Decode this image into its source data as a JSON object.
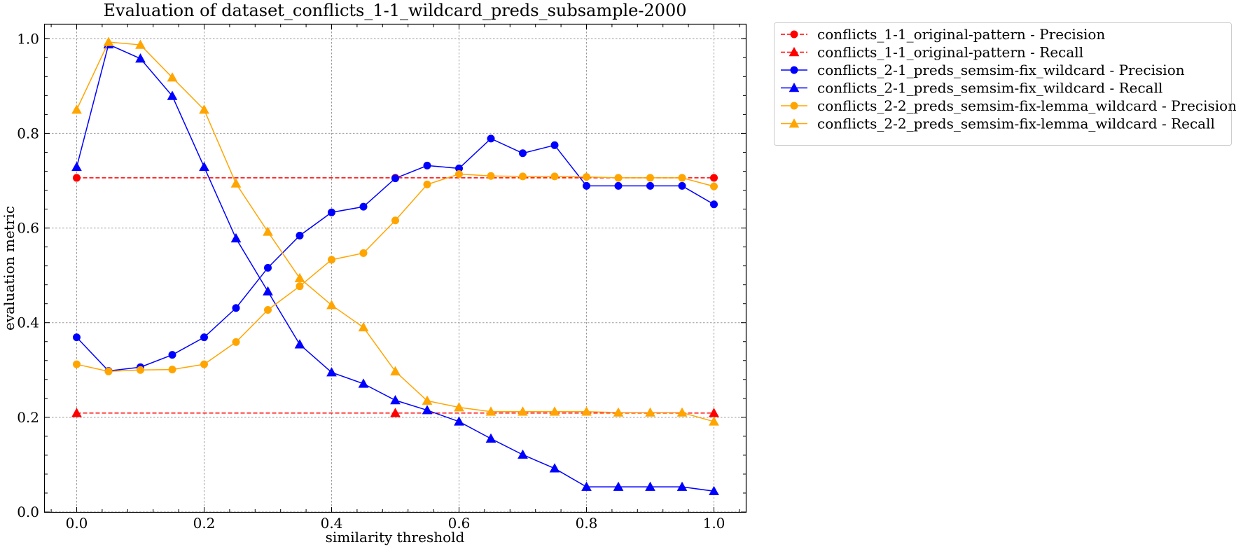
{
  "chart_data": {
    "type": "line",
    "title": "Evaluation of dataset_conflicts_1-1_wildcard_preds_subsample-2000",
    "xlabel": "similarity threshold",
    "ylabel": "evaluation metric",
    "xlim": [
      -0.05,
      1.05
    ],
    "ylim": [
      0.0,
      1.03
    ],
    "xticks": [
      "0.0",
      "0.2",
      "0.4",
      "0.6",
      "0.8",
      "1.0"
    ],
    "yticks": [
      "0.0",
      "0.2",
      "0.4",
      "0.6",
      "0.8",
      "1.0"
    ],
    "grid": true,
    "legend_position": "outside-right",
    "x": [
      0.0,
      0.05,
      0.1,
      0.15,
      0.2,
      0.25,
      0.3,
      0.35,
      0.4,
      0.45,
      0.5,
      0.55,
      0.6,
      0.65,
      0.7,
      0.75,
      0.8,
      0.85,
      0.9,
      0.95,
      1.0
    ],
    "series": [
      {
        "name": "conflicts_1-1_original-pattern - Precision",
        "color": "#ff0000",
        "marker": "circle",
        "linestyle": "dashed",
        "x": [
          0.0,
          0.5,
          1.0
        ],
        "values": [
          0.706,
          0.706,
          0.706
        ]
      },
      {
        "name": "conflicts_1-1_original-pattern - Recall",
        "color": "#ff0000",
        "marker": "triangle",
        "linestyle": "dashed",
        "x": [
          0.0,
          0.5,
          1.0
        ],
        "values": [
          0.209,
          0.209,
          0.209
        ]
      },
      {
        "name": "conflicts_2-1_preds_semsim-fix_wildcard - Precision",
        "color": "#0000ff",
        "marker": "circle",
        "linestyle": "solid",
        "values": [
          0.369,
          0.298,
          0.306,
          0.332,
          0.369,
          0.431,
          0.516,
          0.584,
          0.633,
          0.645,
          0.705,
          0.732,
          0.726,
          0.789,
          0.758,
          0.775,
          0.689,
          0.689,
          0.689,
          0.689,
          0.65
        ]
      },
      {
        "name": "conflicts_2-1_preds_semsim-fix_wildcard - Recall",
        "color": "#0000ff",
        "marker": "triangle",
        "linestyle": "solid",
        "values": [
          0.729,
          0.988,
          0.958,
          0.879,
          0.729,
          0.578,
          0.466,
          0.354,
          0.295,
          0.271,
          0.236,
          0.215,
          0.191,
          0.155,
          0.121,
          0.092,
          0.053,
          0.053,
          0.053,
          0.053,
          0.044
        ]
      },
      {
        "name": "conflicts_2-2_preds_semsim-fix-lemma_wildcard - Precision",
        "color": "#ffa500",
        "marker": "circle",
        "linestyle": "solid",
        "values": [
          0.312,
          0.297,
          0.3,
          0.301,
          0.312,
          0.359,
          0.427,
          0.477,
          0.533,
          0.547,
          0.616,
          0.692,
          0.714,
          0.71,
          0.709,
          0.709,
          0.708,
          0.706,
          0.706,
          0.706,
          0.688
        ]
      },
      {
        "name": "conflicts_2-2_preds_semsim-fix-lemma_wildcard - Recall",
        "color": "#ffa500",
        "marker": "triangle",
        "linestyle": "solid",
        "values": [
          0.85,
          0.993,
          0.987,
          0.918,
          0.85,
          0.694,
          0.592,
          0.494,
          0.437,
          0.39,
          0.297,
          0.235,
          0.221,
          0.212,
          0.212,
          0.212,
          0.212,
          0.21,
          0.21,
          0.21,
          0.191
        ]
      }
    ]
  }
}
